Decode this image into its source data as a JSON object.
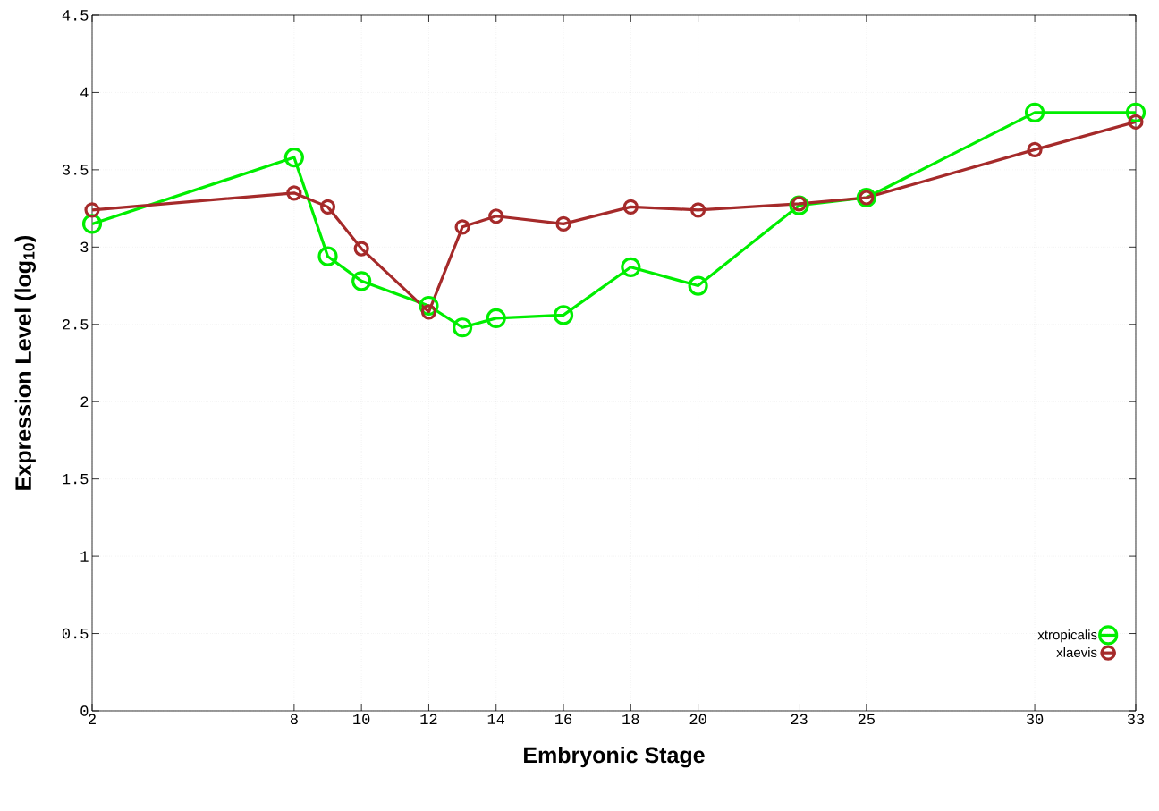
{
  "chart_data": {
    "type": "line",
    "xlabel": "Embryonic Stage",
    "ylabel": "Expression Level (log$_{10}$)",
    "x": [
      2,
      8,
      9,
      10,
      12,
      13,
      14,
      16,
      18,
      20,
      23,
      25,
      30,
      33
    ],
    "series": [
      {
        "name": "xtropicalis",
        "color": "#00ee00",
        "values": [
          3.15,
          3.58,
          2.94,
          2.78,
          2.62,
          2.48,
          2.54,
          2.56,
          2.87,
          2.75,
          3.27,
          3.32,
          3.87,
          3.87
        ]
      },
      {
        "name": "xlaevis",
        "color": "#a52a2a",
        "values": [
          3.24,
          3.35,
          3.26,
          2.99,
          2.58,
          3.13,
          3.2,
          3.15,
          3.26,
          3.24,
          3.28,
          3.32,
          3.63,
          3.81
        ]
      }
    ],
    "xlim": [
      2,
      33
    ],
    "ylim": [
      0,
      4.5
    ],
    "xticks": [
      2,
      8,
      10,
      12,
      14,
      16,
      18,
      20,
      23,
      25,
      30,
      33
    ],
    "yticks": [
      0,
      0.5,
      1,
      1.5,
      2,
      2.5,
      3,
      3.5,
      4,
      4.5
    ],
    "grid": true,
    "legend": "bottom right",
    "marker": "circle",
    "line_style": "solid"
  }
}
